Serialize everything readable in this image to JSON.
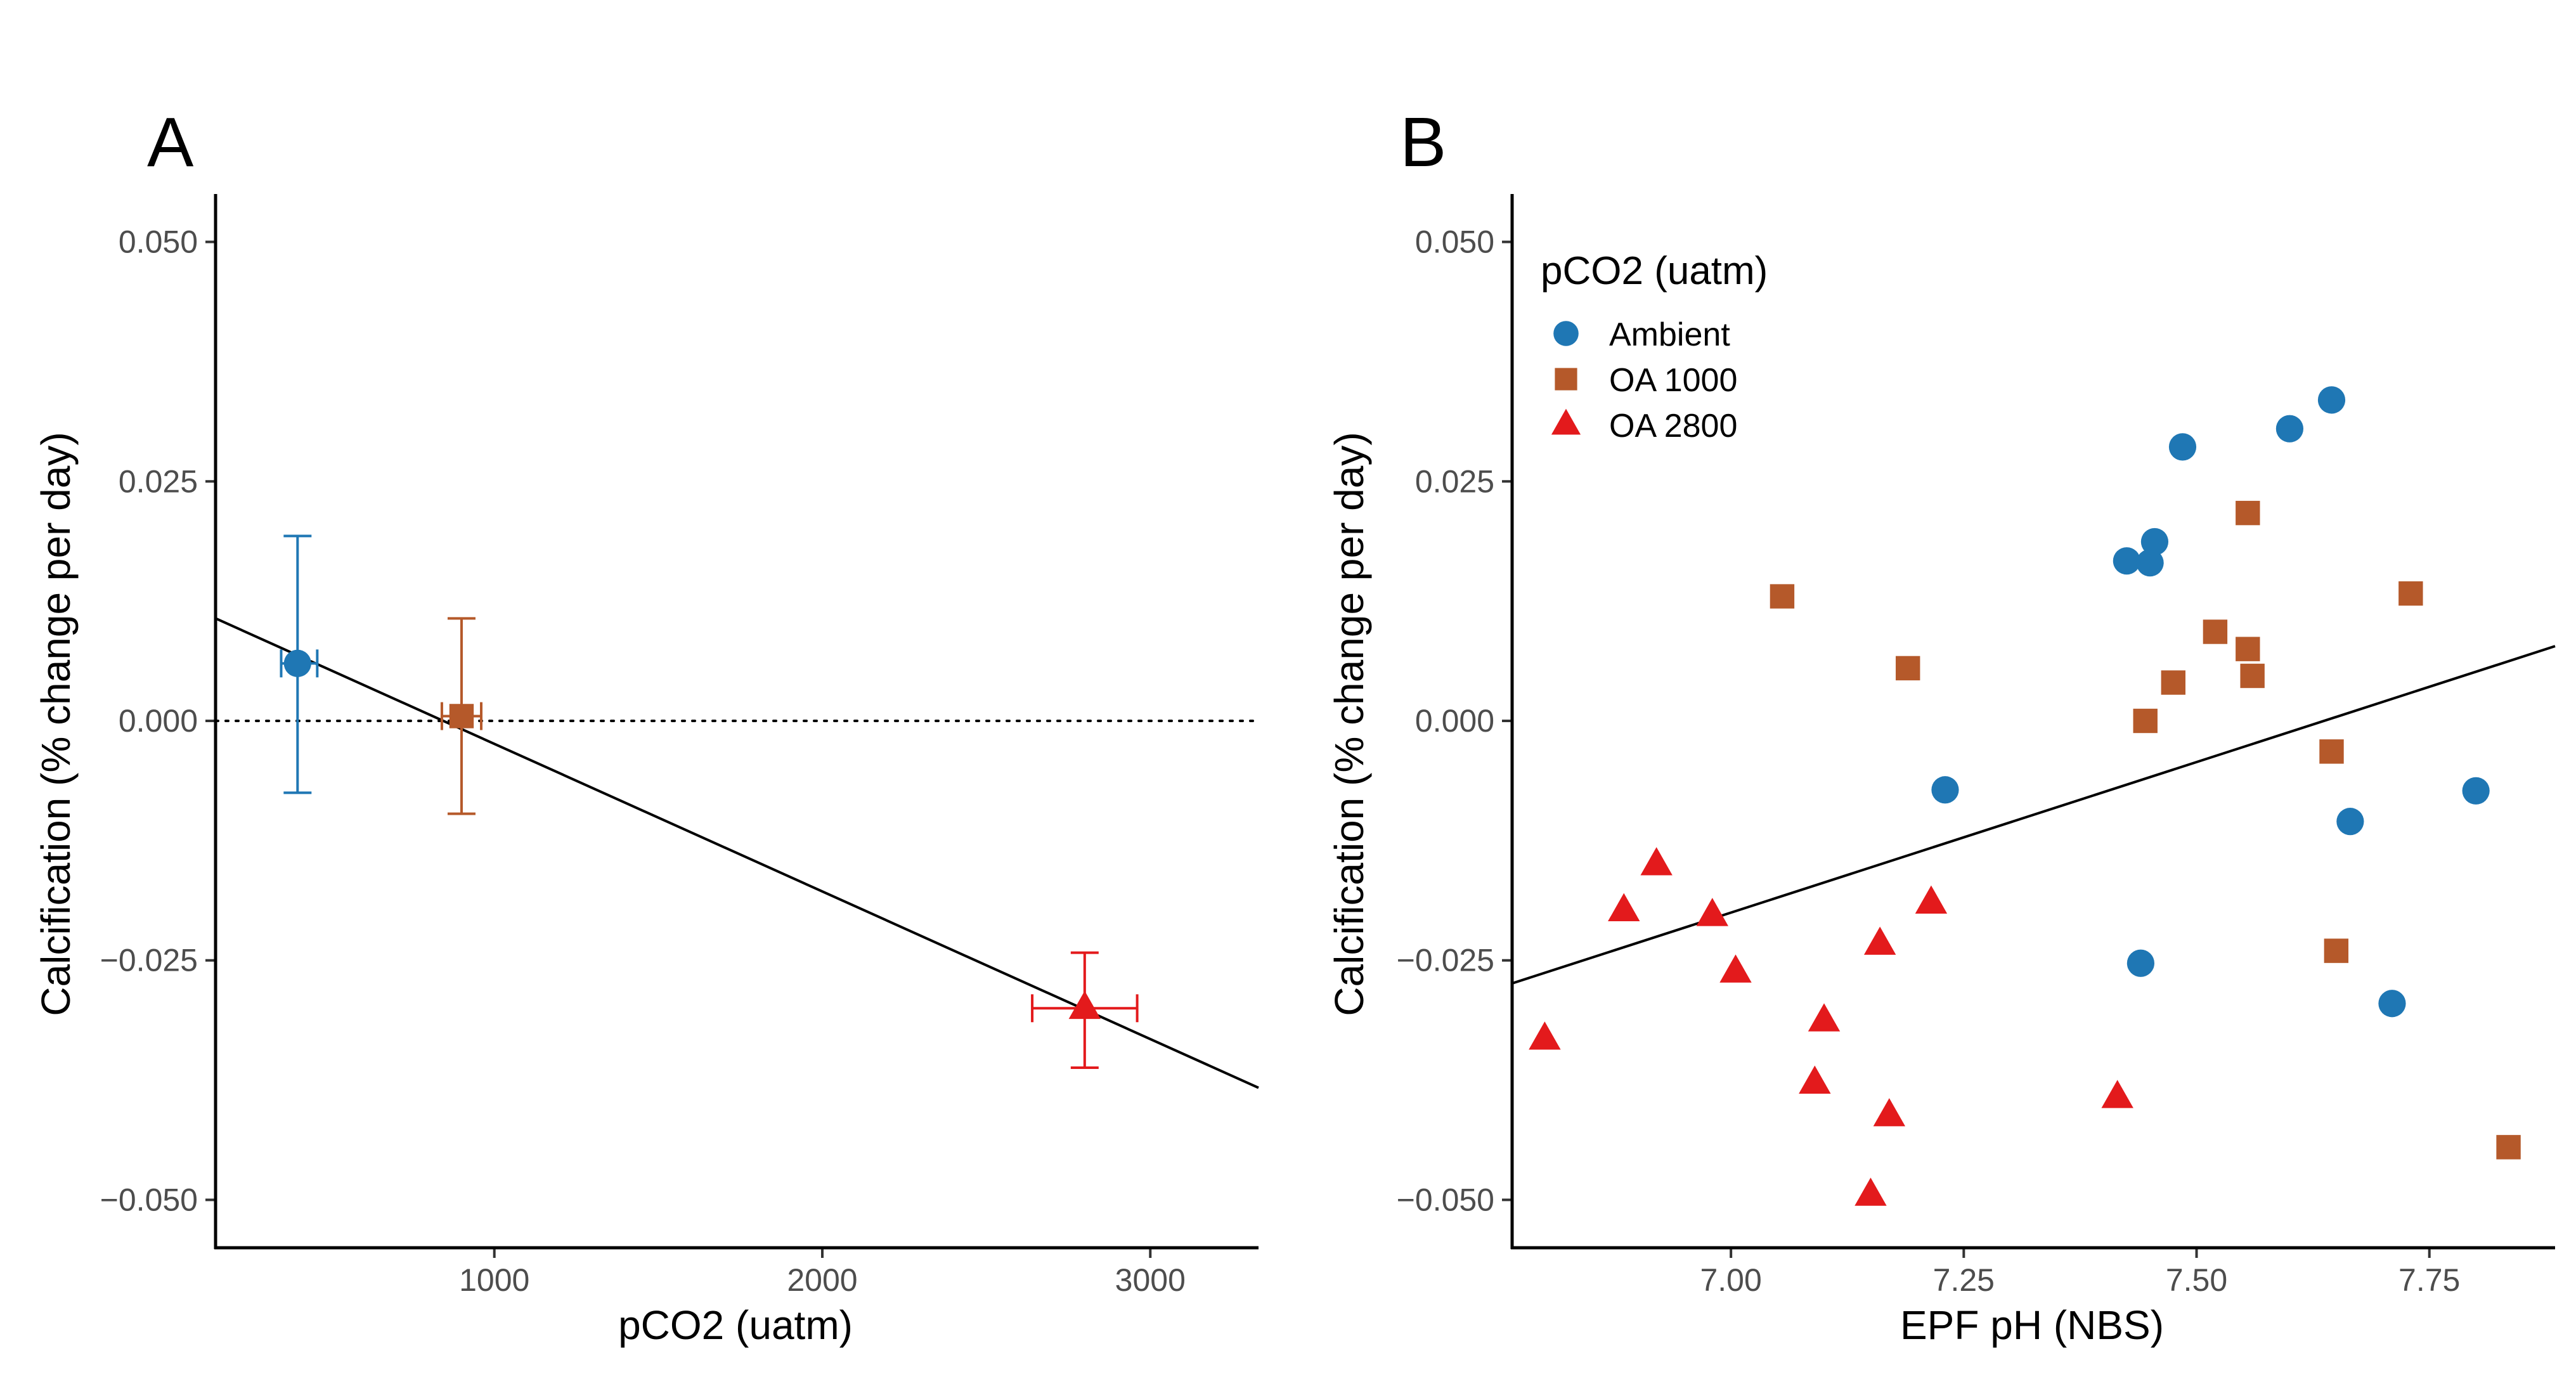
{
  "colors": {
    "Ambient": "#1f77b4",
    "OA 1000": "#b5592a",
    "OA 2800": "#e31a1c"
  },
  "chart_data": [
    {
      "type": "scatter",
      "panel": "A",
      "xlabel": "pCO2 (uatm)",
      "ylabel": "Calcification (% change per day)",
      "xlim": [
        150,
        3330
      ],
      "ylim": [
        -0.055,
        0.055
      ],
      "xticks": [
        1000,
        2000,
        3000
      ],
      "xtick_labels": [
        "1000",
        "2000",
        "3000"
      ],
      "yticks": [
        -0.05,
        -0.025,
        0,
        0.025,
        0.05
      ],
      "ytick_labels": [
        "−0.050",
        "−0.025",
        "0.000",
        "0.025",
        "0.050"
      ],
      "reference_line_y": 0,
      "trend_line": {
        "x": [
          150,
          3330
        ],
        "y": [
          0.0107,
          -0.0383
        ]
      },
      "series": [
        {
          "name": "Ambient",
          "marker": "circle",
          "x": [
            400
          ],
          "y": [
            0.006
          ],
          "x_err": [
            [
              350,
              460
            ]
          ],
          "y_err": [
            [
              -0.0075,
              0.0193
            ]
          ]
        },
        {
          "name": "OA 1000",
          "marker": "square",
          "x": [
            900
          ],
          "y": [
            0.0005
          ],
          "x_err": [
            [
              840,
              960
            ]
          ],
          "y_err": [
            [
              -0.0097,
              0.0107
            ]
          ]
        },
        {
          "name": "OA 2800",
          "marker": "triangle",
          "x": [
            2800
          ],
          "y": [
            -0.03
          ],
          "x_err": [
            [
              2640,
              2960
            ]
          ],
          "y_err": [
            [
              -0.0362,
              -0.0242
            ]
          ]
        }
      ]
    },
    {
      "type": "scatter",
      "panel": "B",
      "xlabel": "EPF pH (NBS)",
      "ylabel": "Calcification (% change per day)",
      "xlim": [
        6.765,
        7.885
      ],
      "ylim": [
        -0.055,
        0.055
      ],
      "xticks": [
        7.0,
        7.25,
        7.5,
        7.75
      ],
      "xtick_labels": [
        "7.00",
        "7.25",
        "7.50",
        "7.75"
      ],
      "yticks": [
        -0.05,
        -0.025,
        0,
        0.025,
        0.05
      ],
      "ytick_labels": [
        "−0.050",
        "−0.025",
        "0.000",
        "0.025",
        "0.050"
      ],
      "legend": {
        "title": "pCO2 (uatm)",
        "position": "top-left"
      },
      "trend_line": {
        "x": [
          6.765,
          7.885
        ],
        "y": [
          -0.0274,
          0.0078
        ]
      },
      "series": [
        {
          "name": "Ambient",
          "marker": "circle",
          "x": [
            7.23,
            7.425,
            7.45,
            7.455,
            7.485,
            7.6,
            7.645,
            7.44,
            7.665,
            7.71,
            7.8
          ],
          "y": [
            -0.0072,
            0.0167,
            0.0165,
            0.0187,
            0.0286,
            0.0305,
            0.0335,
            -0.0253,
            -0.0105,
            -0.0295,
            -0.0073
          ]
        },
        {
          "name": "OA 1000",
          "marker": "square",
          "x": [
            7.055,
            7.19,
            7.445,
            7.475,
            7.52,
            7.555,
            7.56,
            7.555,
            7.645,
            7.65,
            7.73,
            7.835
          ],
          "y": [
            0.013,
            0.0055,
            0.0,
            0.004,
            0.0093,
            0.0075,
            0.0047,
            0.0217,
            -0.0032,
            -0.024,
            0.0133,
            -0.0445
          ]
        },
        {
          "name": "OA 2800",
          "marker": "triangle",
          "x": [
            6.8,
            6.885,
            6.92,
            6.98,
            7.005,
            7.09,
            7.1,
            7.15,
            7.16,
            7.17,
            7.215,
            7.415
          ],
          "y": [
            -0.0332,
            -0.0198,
            -0.015,
            -0.0203,
            -0.0262,
            -0.0378,
            -0.0313,
            -0.0495,
            -0.0233,
            -0.0412,
            -0.019,
            -0.0393
          ]
        }
      ]
    }
  ],
  "panels": {
    "A": {
      "label": "A"
    },
    "B": {
      "label": "B"
    }
  }
}
